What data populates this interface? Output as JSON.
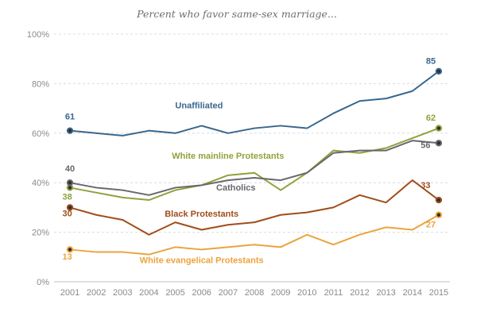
{
  "title": "Percent who favor same-sex marriage...",
  "chart_data": {
    "type": "line",
    "title": "Percent who favor same-sex marriage...",
    "x": [
      2001,
      2002,
      2003,
      2004,
      2005,
      2006,
      2007,
      2008,
      2009,
      2010,
      2011,
      2012,
      2013,
      2014,
      2015
    ],
    "ylim": [
      0,
      100
    ],
    "yticks": [
      0,
      20,
      40,
      60,
      80,
      100
    ],
    "ytick_suffix": "%",
    "grid": "horizontal-dashed",
    "legend_position": "inline-labels",
    "series": [
      {
        "name": "Unaffiliated",
        "color": "#38678f",
        "values": [
          61,
          60,
          59,
          61,
          60,
          63,
          60,
          62,
          63,
          62,
          68,
          73,
          74,
          77,
          85
        ]
      },
      {
        "name": "White mainline Protestants",
        "color": "#8ea33c",
        "values": [
          38,
          36,
          34,
          33,
          37,
          39,
          43,
          44,
          37,
          44,
          53,
          52,
          54,
          58,
          62
        ]
      },
      {
        "name": "Catholics",
        "color": "#68686d",
        "values": [
          40,
          38,
          37,
          35,
          38,
          39,
          41,
          42,
          41,
          44,
          52,
          53,
          53,
          57,
          56
        ]
      },
      {
        "name": "Black Protestants",
        "color": "#a04d1b",
        "values": [
          30,
          27,
          25,
          19,
          24,
          21,
          23,
          24,
          27,
          28,
          30,
          35,
          32,
          41,
          33
        ]
      },
      {
        "name": "White evangelical Protestants",
        "color": "#eca33d",
        "values": [
          13,
          12,
          12,
          11,
          14,
          13,
          14,
          15,
          14,
          19,
          15,
          19,
          22,
          21,
          27
        ]
      }
    ],
    "annotations": {
      "series_labels": [
        {
          "text": "Unaffiliated",
          "series": 0,
          "x": 2005.9,
          "y": 70,
          "anchor": "middle"
        },
        {
          "text": "White mainline Protestants",
          "series": 1,
          "x": 2007.0,
          "y": 49.7,
          "anchor": "middle"
        },
        {
          "text": "Catholics",
          "series": 2,
          "x": 2007.3,
          "y": 36.9,
          "anchor": "middle"
        },
        {
          "text": "Black Protestants",
          "series": 3,
          "x": 2006.0,
          "y": 26.3,
          "anchor": "middle"
        },
        {
          "text": "White evangelical Protestants",
          "series": 4,
          "x": 2006.0,
          "y": 7.5,
          "anchor": "middle"
        }
      ],
      "value_labels": [
        {
          "text": "61",
          "series": 0,
          "x": 2001.0,
          "y": 65.5
        },
        {
          "text": "85",
          "series": 0,
          "x": 2014.7,
          "y": 88.0
        },
        {
          "text": "38",
          "series": 1,
          "x": 2000.9,
          "y": 33.2
        },
        {
          "text": "62",
          "series": 1,
          "x": 2014.7,
          "y": 65.0
        },
        {
          "text": "40",
          "series": 2,
          "x": 2001.0,
          "y": 44.5
        },
        {
          "text": "56",
          "series": 2,
          "x": 2014.5,
          "y": 54.0
        },
        {
          "text": "30",
          "series": 3,
          "x": 2000.9,
          "y": 26.5
        },
        {
          "text": "33",
          "series": 3,
          "x": 2014.5,
          "y": 37.8
        },
        {
          "text": "13",
          "series": 4,
          "x": 2000.9,
          "y": 9.0
        },
        {
          "text": "27",
          "series": 4,
          "x": 2014.7,
          "y": 22.0
        }
      ]
    },
    "endpoint_markers": {
      "first": true,
      "last": true
    },
    "colors": {
      "grid_dashed": "#dcdcdc",
      "axis_zero_line": "#b9c2cb",
      "tick_text": "#8a8a8a",
      "title_text": "#6e6e6e",
      "marker_center": "#2f2f2f"
    }
  }
}
